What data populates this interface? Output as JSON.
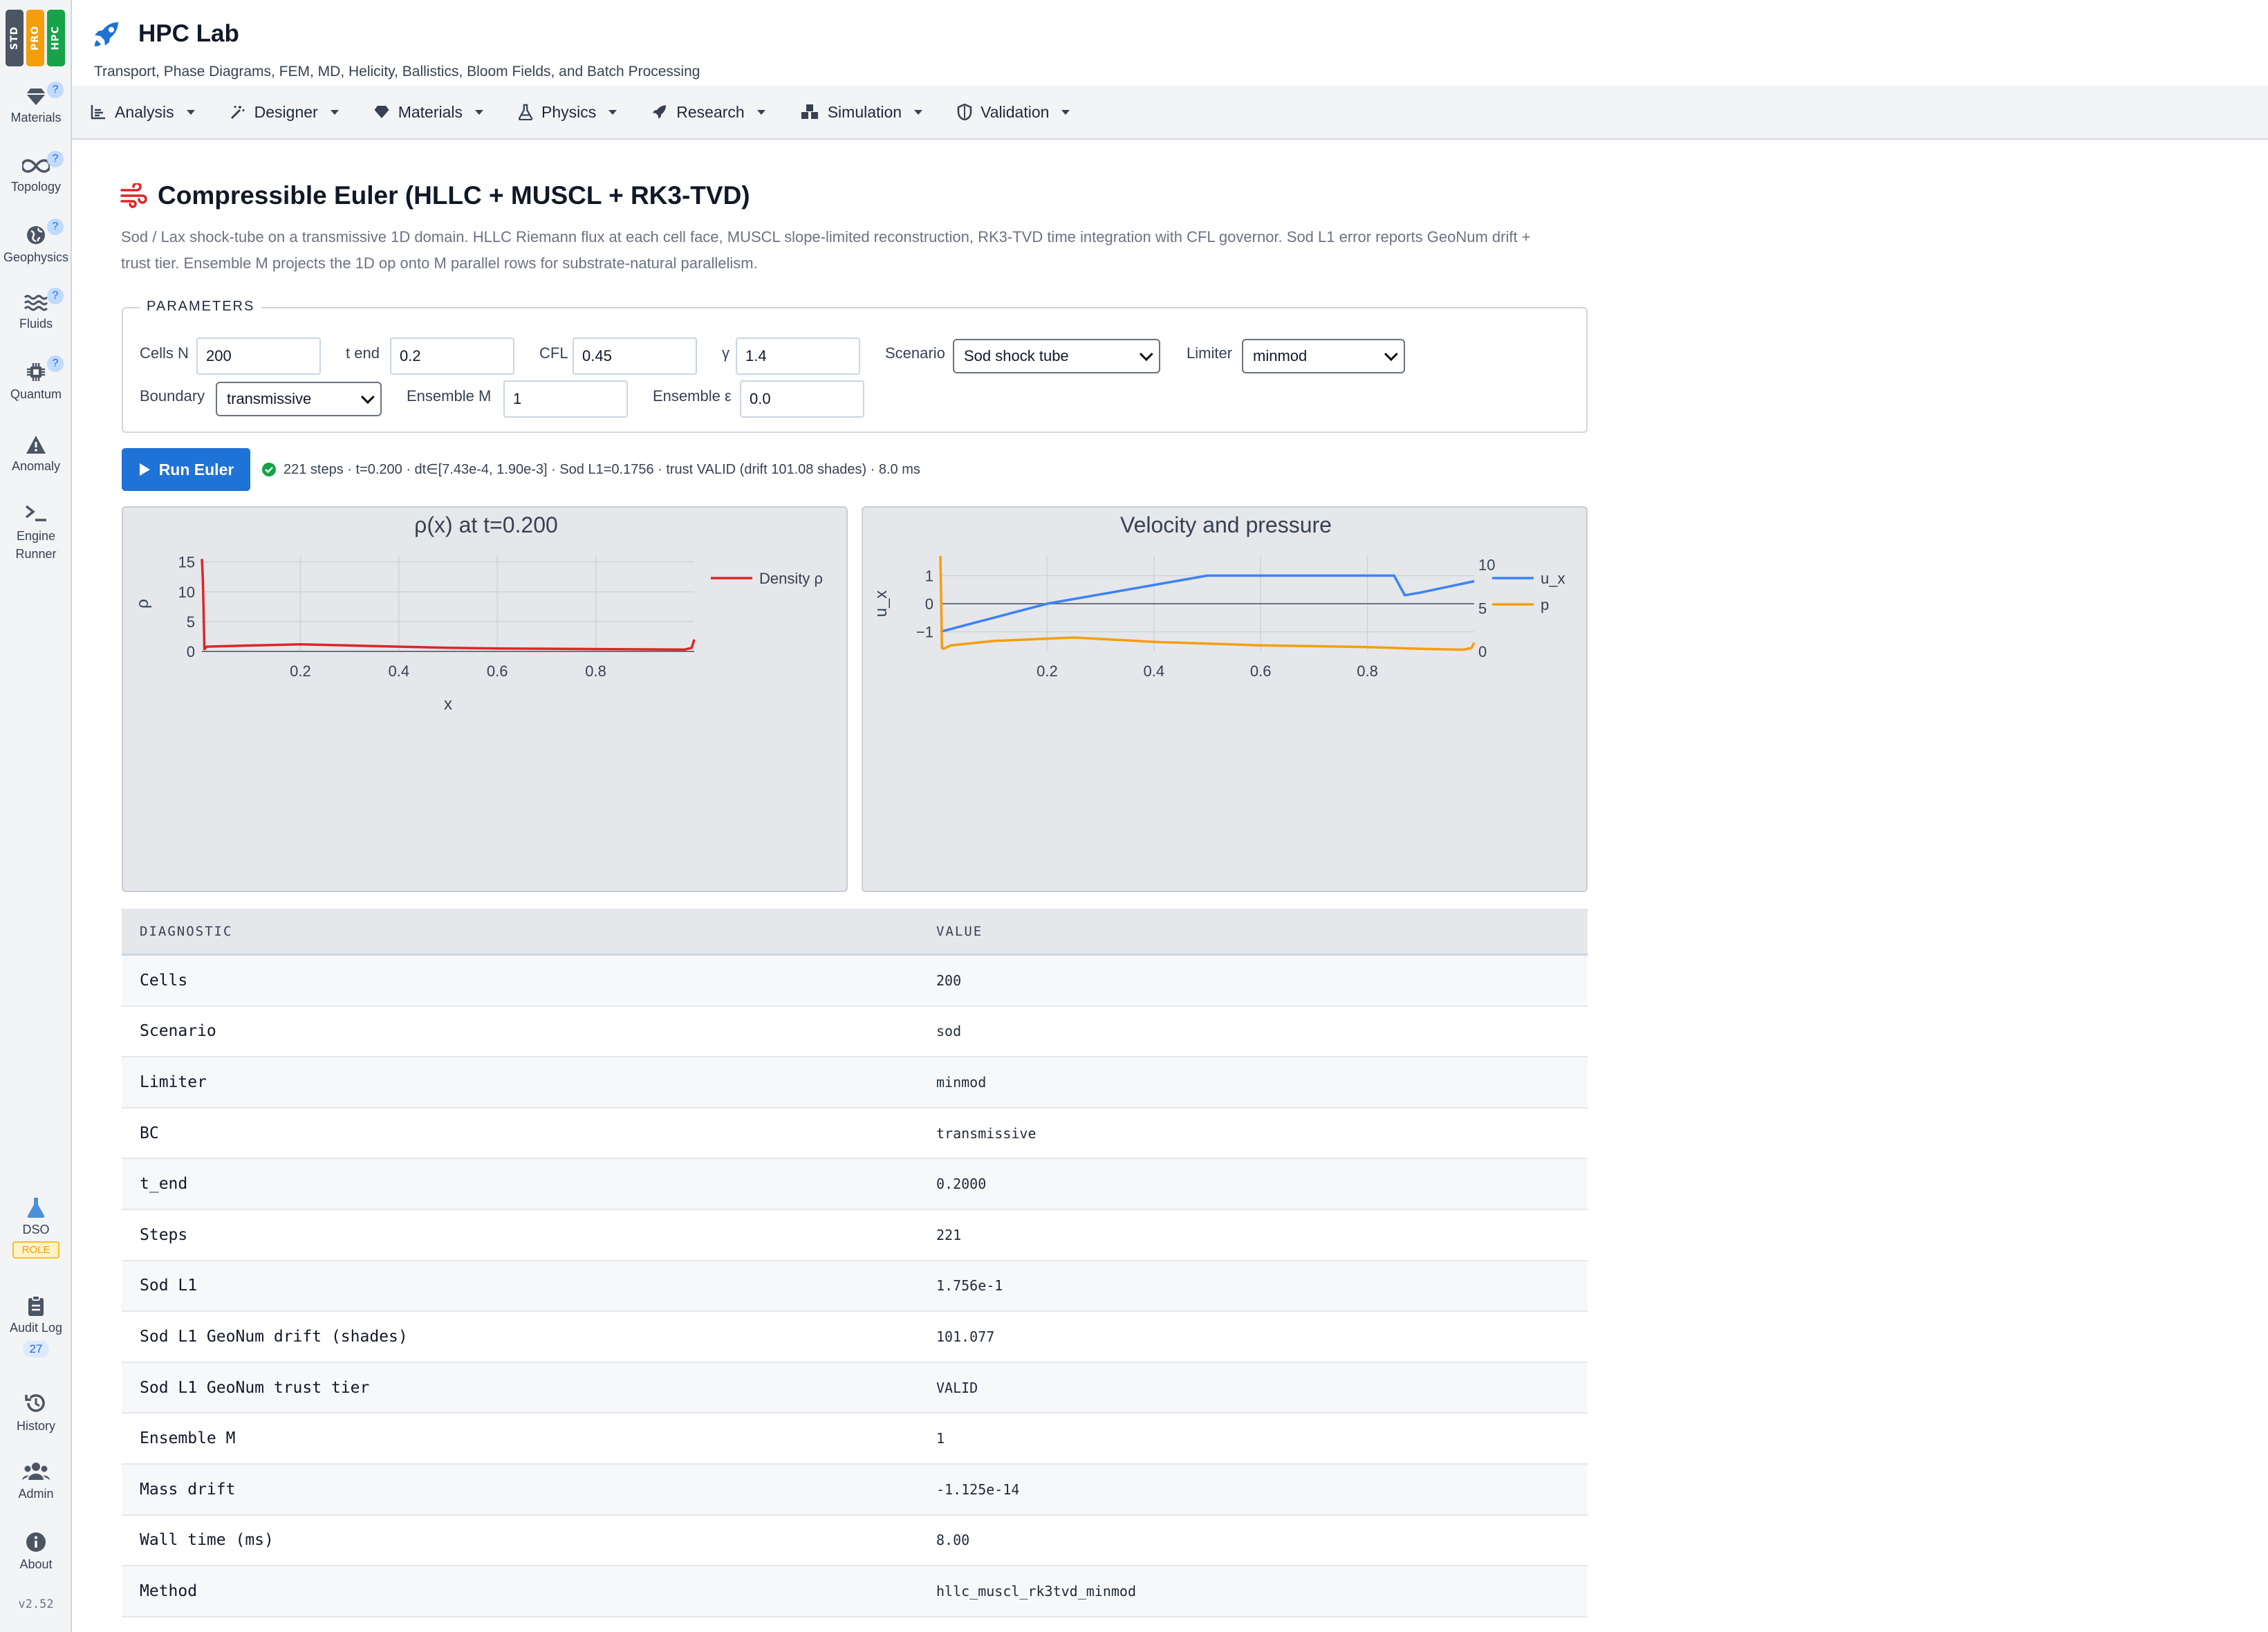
{
  "tiers": [
    "STD",
    "PRO",
    "HPC"
  ],
  "colors": {
    "tier_std": "#4b5563",
    "tier_pro": "#f59e0b",
    "tier_hpc": "#16a34a",
    "accent": "#1f72d6",
    "density": "#dc2626",
    "velocity": "#3b82f6",
    "pressure": "#f59e0b",
    "ok": "#16a34a"
  },
  "rail": {
    "items": [
      {
        "label": "Materials",
        "icon": "gem-icon",
        "help": "?"
      },
      {
        "label": "Topology",
        "icon": "infinity-icon",
        "help": "?"
      },
      {
        "label": "Geophysics",
        "icon": "globe-icon",
        "help": "?"
      },
      {
        "label": "Fluids",
        "icon": "water-icon",
        "help": "?"
      },
      {
        "label": "Quantum",
        "icon": "chip-icon",
        "help": "?"
      },
      {
        "label": "Anomaly",
        "icon": "warning-icon"
      },
      {
        "label": "Engine Runner",
        "icon": "terminal-icon"
      }
    ],
    "bottom": [
      {
        "label": "DSO",
        "icon": "flask-icon",
        "badge": "ROLE"
      },
      {
        "label": "Audit Log",
        "icon": "clipboard-icon",
        "badge": "27"
      },
      {
        "label": "History",
        "icon": "history-icon"
      },
      {
        "label": "Admin",
        "icon": "users-icon"
      },
      {
        "label": "About",
        "icon": "info-icon"
      }
    ],
    "version": "v2.52"
  },
  "header": {
    "title": "HPC Lab",
    "subtitle": "Transport, Phase Diagrams, FEM, MD, Helicity, Ballistics, Bloom Fields, and Batch Processing"
  },
  "nav": [
    "Analysis",
    "Designer",
    "Materials",
    "Physics",
    "Research",
    "Simulation",
    "Validation"
  ],
  "page": {
    "title": "Compressible Euler (HLLC + MUSCL + RK3-TVD)",
    "description": "Sod / Lax shock-tube on a transmissive 1D domain. HLLC Riemann flux at each cell face, MUSCL slope-limited reconstruction, RK3-TVD time integration with CFL governor. Sod L1 error reports GeoNum drift + trust tier. Ensemble M projects the 1D op onto M parallel rows for substrate-natural parallelism."
  },
  "params": {
    "legend": "PARAMETERS",
    "cells_label": "Cells N",
    "cells_value": "200",
    "tend_label": "t end",
    "tend_value": "0.2",
    "cfl_label": "CFL",
    "cfl_value": "0.45",
    "gamma_label": "γ",
    "gamma_value": "1.4",
    "scenario_label": "Scenario",
    "scenario_value": "Sod shock tube",
    "limiter_label": "Limiter",
    "limiter_value": "minmod",
    "boundary_label": "Boundary",
    "boundary_value": "transmissive",
    "ensemble_m_label": "Ensemble M",
    "ensemble_m_value": "1",
    "ensemble_eps_label": "Ensemble ε",
    "ensemble_eps_value": "0.0"
  },
  "run": {
    "button": "Run Euler",
    "status": "221 steps · t=0.200 · dt∈[7.43e-4, 1.90e-3] · Sod L1=0.1756 · trust VALID (drift 101.08 shades) · 8.0 ms"
  },
  "chart_data": [
    {
      "type": "line",
      "title": "ρ(x) at t=0.200",
      "xlabel": "x",
      "ylabel": "ρ",
      "xlim": [
        0,
        1
      ],
      "ylim": [
        0,
        16
      ],
      "xticks": [
        "0.2",
        "0.4",
        "0.6",
        "0.8"
      ],
      "yticks": [
        "0",
        "5",
        "10",
        "15"
      ],
      "legend": "top-right",
      "series": [
        {
          "name": "Density ρ",
          "x": [
            0,
            0.002,
            0.005,
            0.01,
            0.1,
            0.2,
            0.3,
            0.4,
            0.5,
            0.6,
            0.7,
            0.8,
            0.9,
            0.98,
            0.995,
            1.0
          ],
          "y": [
            15.5,
            12,
            0.4,
            0.8,
            1.0,
            1.2,
            1.0,
            0.8,
            0.6,
            0.5,
            0.45,
            0.4,
            0.35,
            0.3,
            0.6,
            2.0
          ]
        }
      ]
    },
    {
      "type": "line",
      "title": "Velocity and pressure",
      "xlabel": "",
      "ylabel": "u_x",
      "xlim": [
        0,
        1
      ],
      "ylim": [
        -1.7,
        1.7
      ],
      "y2label": "p",
      "y2lim": [
        0,
        11
      ],
      "xticks": [
        "0.2",
        "0.4",
        "0.6",
        "0.8"
      ],
      "yticks": [
        "−1",
        "0",
        "1"
      ],
      "y2ticks": [
        "0",
        "5",
        "10"
      ],
      "legend": "top-right",
      "series": [
        {
          "name": "u_x",
          "axis": "y",
          "x": [
            0,
            0.2,
            0.5,
            0.8,
            0.85,
            0.87,
            0.9,
            1.0
          ],
          "y": [
            -1.0,
            0.0,
            1.0,
            1.0,
            1.0,
            0.3,
            0.4,
            0.8
          ]
        },
        {
          "name": "p",
          "axis": "y2",
          "x": [
            0,
            0.003,
            0.006,
            0.02,
            0.1,
            0.25,
            0.4,
            0.6,
            0.8,
            0.9,
            0.98,
            0.995,
            1.0
          ],
          "y": [
            11.0,
            0.4,
            0.3,
            0.7,
            1.2,
            1.6,
            1.1,
            0.7,
            0.5,
            0.3,
            0.2,
            0.4,
            1.0
          ]
        }
      ]
    }
  ],
  "table": {
    "headers": [
      "DIAGNOSTIC",
      "VALUE"
    ],
    "rows": [
      [
        "Cells",
        "200"
      ],
      [
        "Scenario",
        "sod"
      ],
      [
        "Limiter",
        "minmod"
      ],
      [
        "BC",
        "transmissive"
      ],
      [
        "t_end",
        "0.2000"
      ],
      [
        "Steps",
        "221"
      ],
      [
        "Sod L1",
        "1.756e-1"
      ],
      [
        "Sod L1 GeoNum drift (shades)",
        "101.077"
      ],
      [
        "Sod L1 GeoNum trust tier",
        "VALID"
      ],
      [
        "Ensemble M",
        "1"
      ],
      [
        "Mass drift",
        "-1.125e-14"
      ],
      [
        "Wall time (ms)",
        "8.00"
      ],
      [
        "Method",
        "hllc_muscl_rk3tvd_minmod"
      ]
    ]
  }
}
